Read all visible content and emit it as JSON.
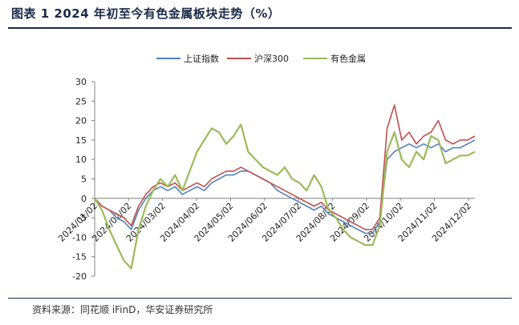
{
  "header": {
    "title": "图表 1 2024 年初至今有色金属板块走势（%）"
  },
  "footer": {
    "source": "资料来源：同花顺 iFinD，华安证券研究所"
  },
  "chart_data": {
    "type": "line",
    "title": "图表 1 2024 年初至今有色金属板块走势（%）",
    "xlabel": "",
    "ylabel": "",
    "ylim": [
      -20,
      30
    ],
    "yticks": [
      -20,
      -15,
      -10,
      -5,
      0,
      5,
      10,
      15,
      20,
      25,
      30
    ],
    "x_tick_labels": [
      "2024/01/02",
      "2024/02/02",
      "2024/03/02",
      "2024/04/02",
      "2024/05/02",
      "2024/06/02",
      "2024/07/02",
      "2024/08/02",
      "2024/09/02",
      "2024/10/02",
      "2024/11/02",
      "2024/12/02"
    ],
    "legend_position": "top",
    "grid": false,
    "x": [
      "2024-01-02",
      "2024-01-09",
      "2024-01-16",
      "2024-01-23",
      "2024-01-30",
      "2024-02-06",
      "2024-02-13",
      "2024-02-20",
      "2024-02-27",
      "2024-03-05",
      "2024-03-12",
      "2024-03-19",
      "2024-03-26",
      "2024-04-02",
      "2024-04-09",
      "2024-04-16",
      "2024-04-23",
      "2024-04-30",
      "2024-05-07",
      "2024-05-14",
      "2024-05-21",
      "2024-05-28",
      "2024-06-04",
      "2024-06-11",
      "2024-06-18",
      "2024-06-25",
      "2024-07-02",
      "2024-07-09",
      "2024-07-16",
      "2024-07-23",
      "2024-07-30",
      "2024-08-06",
      "2024-08-13",
      "2024-08-20",
      "2024-08-27",
      "2024-09-03",
      "2024-09-10",
      "2024-09-17",
      "2024-09-24",
      "2024-10-01",
      "2024-10-08",
      "2024-10-15",
      "2024-10-22",
      "2024-10-29",
      "2024-11-05",
      "2024-11-12",
      "2024-11-19",
      "2024-11-26",
      "2024-12-03",
      "2024-12-10",
      "2024-12-17",
      "2024-12-24",
      "2024-12-31"
    ],
    "series": [
      {
        "name": "上证指数",
        "color": "#4f81bd",
        "values": [
          0,
          -2,
          -3,
          -5,
          -6,
          -8,
          -3,
          0,
          2,
          3,
          2,
          3,
          1,
          2,
          3,
          2,
          4,
          5,
          6,
          6,
          7,
          7,
          6,
          5,
          4,
          2,
          1,
          0,
          -1,
          -2,
          -3,
          -2,
          -4,
          -5,
          -6,
          -7,
          -8,
          -9,
          -9,
          -6,
          10,
          12,
          13,
          14,
          13,
          14,
          13,
          14,
          12,
          13,
          13,
          14,
          15
        ]
      },
      {
        "name": "沪深300",
        "color": "#c0504d",
        "values": [
          0,
          -2,
          -3,
          -4,
          -5,
          -7,
          -2,
          1,
          3,
          4,
          3,
          4,
          2,
          3,
          4,
          3,
          5,
          6,
          7,
          7,
          8,
          7,
          6,
          5,
          4,
          3,
          2,
          1,
          0,
          -1,
          -2,
          -1,
          -3,
          -4,
          -5,
          -6,
          -7,
          -8,
          -8,
          -5,
          18,
          24,
          15,
          17,
          14,
          16,
          17,
          20,
          15,
          14,
          15,
          15,
          16
        ]
      },
      {
        "name": "有色金属",
        "color": "#9bbb59",
        "values": [
          0,
          -3,
          -8,
          -12,
          -16,
          -18,
          -8,
          -2,
          2,
          5,
          3,
          6,
          2,
          7,
          12,
          15,
          18,
          17,
          14,
          16,
          19,
          12,
          10,
          8,
          7,
          6,
          8,
          5,
          4,
          2,
          6,
          3,
          -3,
          -5,
          -8,
          -10,
          -11,
          -12,
          -12,
          -7,
          12,
          17,
          10,
          8,
          12,
          10,
          16,
          15,
          9,
          10,
          11,
          11,
          12
        ]
      }
    ]
  }
}
